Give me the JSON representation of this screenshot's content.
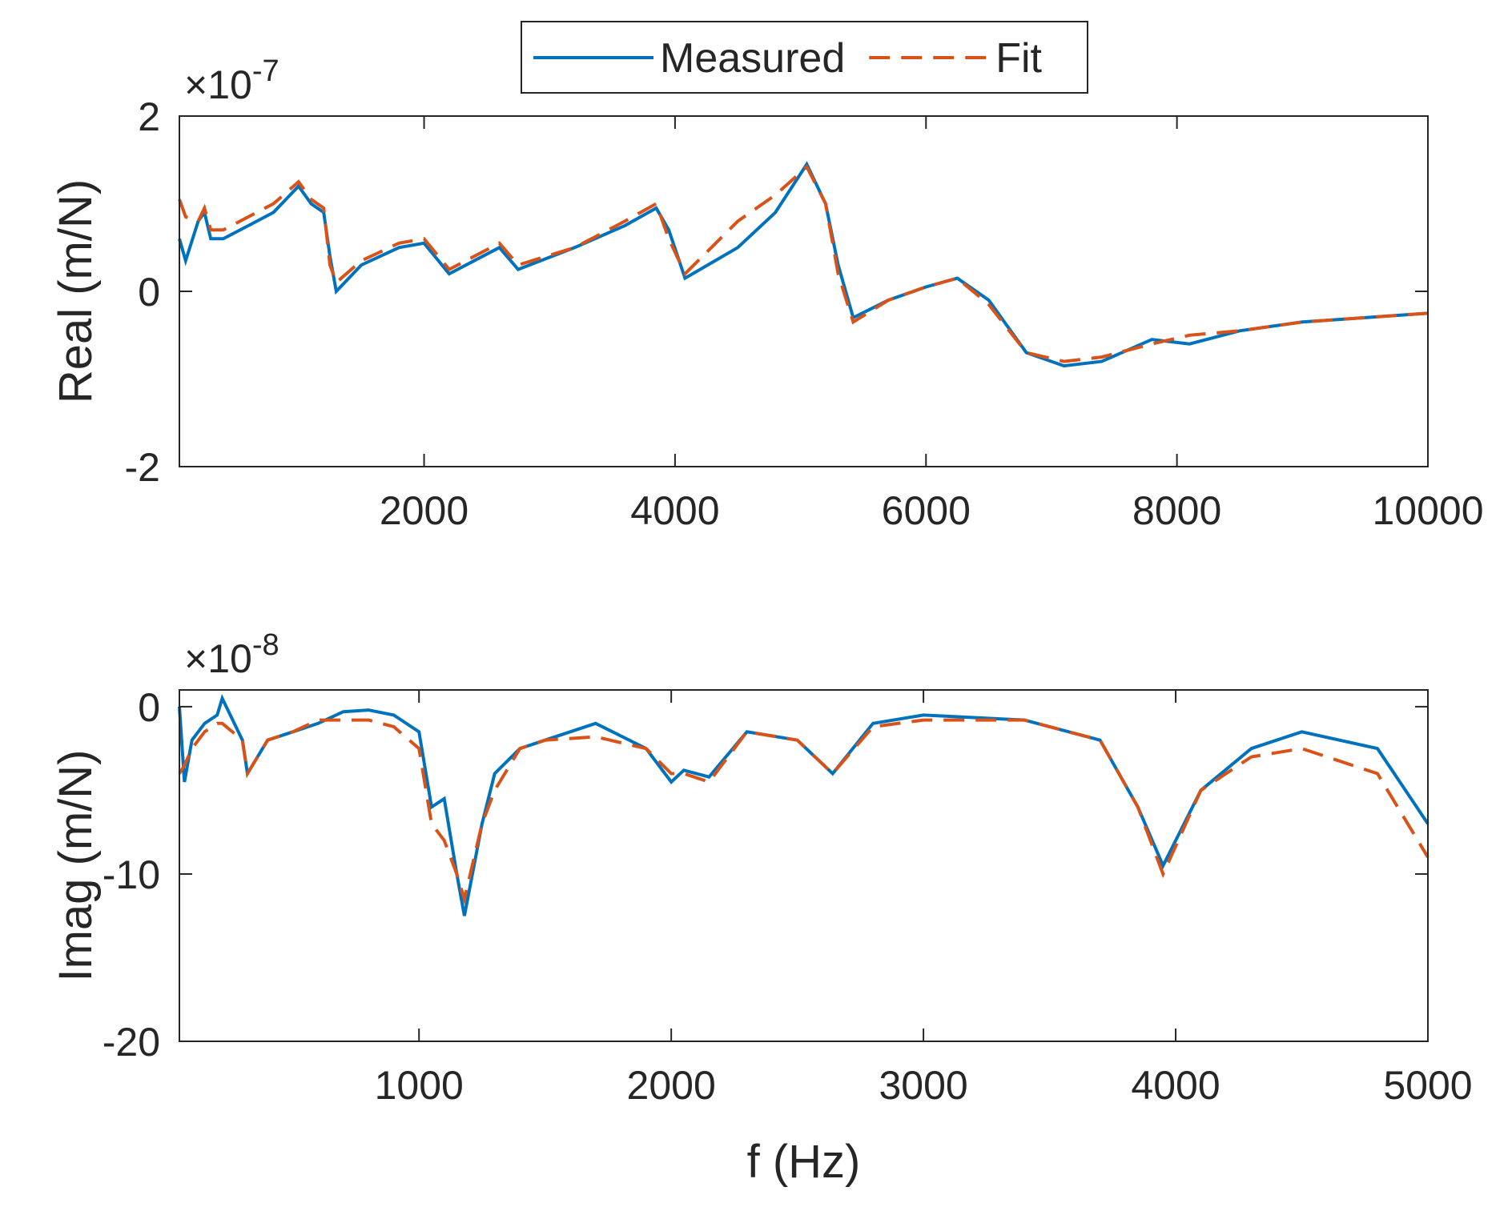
{
  "chart_data": [
    {
      "type": "line",
      "ylabel": "Real (m/N)",
      "y_multiplier": {
        "base": "×10",
        "exponent": "-7"
      },
      "x": [
        50,
        100,
        200,
        250,
        300,
        400,
        600,
        800,
        1000,
        1100,
        1200,
        1250,
        1300,
        1500,
        1800,
        2000,
        2200,
        2400,
        2600,
        2750,
        3200,
        3600,
        3850,
        3950,
        4080,
        4500,
        4800,
        5050,
        5200,
        5300,
        5420,
        5700,
        6000,
        6250,
        6500,
        6800,
        7100,
        7400,
        7800,
        8100,
        8500,
        9000,
        10000
      ],
      "series": [
        {
          "name": "Measured",
          "color": "#0072bd",
          "dash": "solid",
          "values": [
            0.6,
            0.35,
            0.8,
            0.9,
            0.6,
            0.6,
            0.75,
            0.9,
            1.2,
            1.0,
            0.9,
            0.4,
            0.0,
            0.3,
            0.5,
            0.55,
            0.2,
            0.35,
            0.5,
            0.25,
            0.5,
            0.75,
            0.95,
            0.7,
            0.15,
            0.5,
            0.9,
            1.45,
            1.0,
            0.3,
            -0.3,
            -0.1,
            0.05,
            0.15,
            -0.1,
            -0.7,
            -0.85,
            -0.8,
            -0.55,
            -0.6,
            -0.45,
            -0.35,
            -0.25
          ]
        },
        {
          "name": "Fit",
          "color": "#d95319",
          "dash": "dashed",
          "values": [
            1.05,
            0.85,
            0.8,
            0.95,
            0.7,
            0.7,
            0.85,
            1.0,
            1.25,
            1.05,
            0.95,
            0.3,
            0.1,
            0.35,
            0.55,
            0.6,
            0.25,
            0.4,
            0.55,
            0.3,
            0.5,
            0.8,
            1.0,
            0.6,
            0.2,
            0.8,
            1.1,
            1.42,
            1.0,
            0.2,
            -0.35,
            -0.1,
            0.05,
            0.15,
            -0.15,
            -0.7,
            -0.8,
            -0.75,
            -0.6,
            -0.5,
            -0.45,
            -0.35,
            -0.25
          ]
        }
      ],
      "xlim": [
        50,
        10000
      ],
      "xticks": [
        2000,
        4000,
        6000,
        8000,
        10000
      ],
      "ylim": [
        -2,
        2
      ],
      "yticks": [
        -2,
        0,
        2
      ]
    },
    {
      "type": "line",
      "xlabel": "f (Hz)",
      "ylabel": "Imag (m/N)",
      "y_multiplier": {
        "base": "×10",
        "exponent": "-8"
      },
      "x": [
        50,
        70,
        100,
        150,
        200,
        220,
        300,
        320,
        400,
        500,
        600,
        700,
        800,
        900,
        1000,
        1050,
        1100,
        1150,
        1180,
        1250,
        1300,
        1400,
        1500,
        1700,
        1900,
        2000,
        2050,
        2150,
        2300,
        2500,
        2640,
        2800,
        3000,
        3400,
        3700,
        3850,
        3950,
        4100,
        4300,
        4500,
        4800,
        5000
      ],
      "series": [
        {
          "color": "#0072bd",
          "dash": "solid",
          "values": [
            0,
            -4.5,
            -2,
            -1,
            -0.5,
            0.5,
            -2,
            -4,
            -2,
            -1.5,
            -1,
            -0.3,
            -0.2,
            -0.5,
            -1.5,
            -6,
            -5.5,
            -10,
            -12.5,
            -7,
            -4,
            -2.5,
            -2,
            -1,
            -2.5,
            -4.5,
            -3.8,
            -4.2,
            -1.5,
            -2,
            -4,
            -1,
            -0.5,
            -0.8,
            -2,
            -6,
            -9.5,
            -5,
            -2.5,
            -1.5,
            -2.5,
            -7
          ]
        },
        {
          "color": "#d95319",
          "dash": "dashed",
          "values": [
            -4,
            -3.5,
            -2.5,
            -1.5,
            -1,
            -1,
            -2,
            -4,
            -2,
            -1.5,
            -0.8,
            -0.8,
            -0.8,
            -1.2,
            -2.5,
            -7,
            -8,
            -10,
            -11.5,
            -7,
            -5,
            -2.5,
            -2,
            -1.8,
            -2.5,
            -4,
            -4,
            -4.5,
            -1.5,
            -2,
            -4,
            -1.2,
            -0.8,
            -0.8,
            -2,
            -6,
            -10,
            -5,
            -3,
            -2.5,
            -4,
            -9
          ]
        }
      ],
      "xlim": [
        50,
        5000
      ],
      "xticks": [
        1000,
        2000,
        3000,
        4000,
        5000
      ],
      "ylim": [
        -20,
        1
      ],
      "yticks": [
        -20,
        -10,
        0
      ]
    }
  ]
}
